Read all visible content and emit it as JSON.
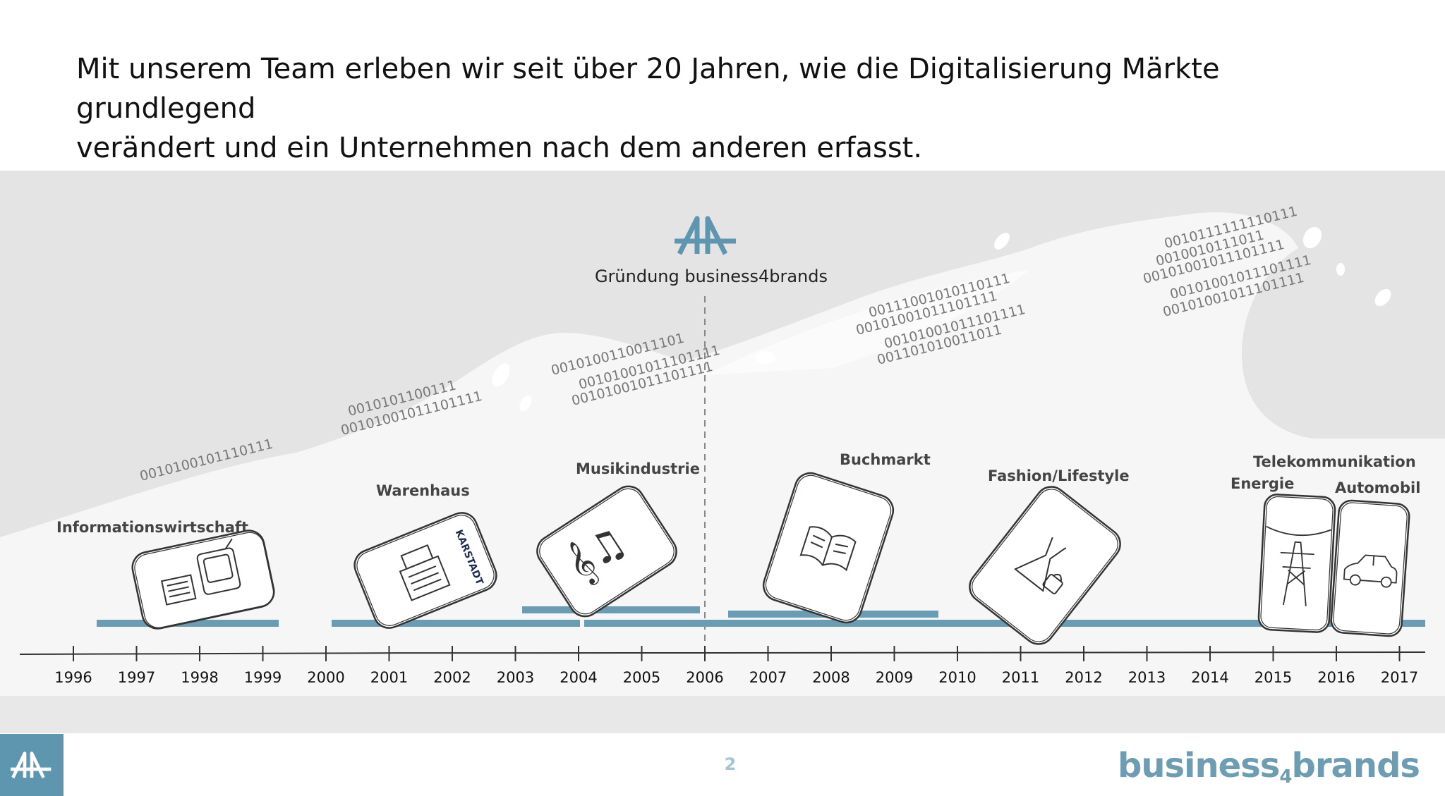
{
  "headline": {
    "line1": "Mit unserem Team erleben wir seit über 20 Jahren, wie die Digitalisierung Märkte grundlegend",
    "line2": "verändert und ein Unternehmen nach dem anderen erfasst."
  },
  "founding": {
    "label": "Gründung business4brands",
    "year": 2006
  },
  "years": [
    1996,
    1997,
    1998,
    1999,
    2000,
    2001,
    2002,
    2003,
    2004,
    2005,
    2006,
    2007,
    2008,
    2009,
    2010,
    2011,
    2012,
    2013,
    2014,
    2015,
    2016,
    2017
  ],
  "industries": [
    {
      "label": "Informationswirtschaft",
      "icon": "newspaper-tv-icon"
    },
    {
      "label": "Warenhaus",
      "icon": "cash-register-icon"
    },
    {
      "label": "Musikindustrie",
      "icon": "music-notes-icon"
    },
    {
      "label": "Buchmarkt",
      "icon": "open-book-icon"
    },
    {
      "label": "Fashion/Lifestyle",
      "icon": "dress-handbag-icon"
    },
    {
      "label": "Telekommunikation",
      "icon": "power-pylon-icon"
    },
    {
      "label": "Energie",
      "icon": "power-pylon-icon"
    },
    {
      "label": "Automobil",
      "icon": "car-icon"
    }
  ],
  "karstadt_text": "KARSTADT",
  "binary_strings": [
    "0010100101110111",
    "0010101100111",
    "00101001011101111",
    "0010100110011101",
    "00101001011101111",
    "00101001011101111",
    "00111001010110111",
    "00101001011101111",
    "00101001011101111",
    "001101010011011",
    "0010111111110111",
    "0010010111011",
    "00101001011101111",
    "00101001011101111",
    "00101001011101111"
  ],
  "footer": {
    "page_number": "2",
    "brand_prefix": "business",
    "brand_sub": "4",
    "brand_suffix": "brands"
  },
  "colors": {
    "accent": "#5e96af",
    "wave_dark": "#e4e4e4",
    "wave_light": "#f5f5f5",
    "text": "#111111"
  }
}
